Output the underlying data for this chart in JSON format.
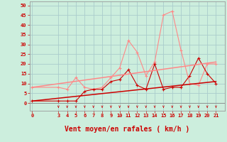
{
  "title": "",
  "xlabel": "Vent moyen/en rafales ( km/h )",
  "background_color": "#cceedd",
  "grid_color": "#aacccc",
  "x_ticks": [
    0,
    3,
    4,
    5,
    6,
    7,
    8,
    9,
    10,
    11,
    12,
    13,
    14,
    15,
    16,
    17,
    18,
    19,
    20,
    21
  ],
  "y_ticks": [
    0,
    5,
    10,
    15,
    20,
    25,
    30,
    35,
    40,
    45,
    50
  ],
  "xlim": [
    -0.3,
    22.0
  ],
  "ylim": [
    -4,
    52
  ],
  "line1_x": [
    0,
    3,
    4,
    5,
    6,
    7,
    8,
    9,
    10,
    11,
    12,
    13,
    14,
    15,
    16,
    17,
    18,
    19,
    20,
    21
  ],
  "line1_y": [
    1,
    1,
    1,
    1,
    6,
    7,
    7,
    11,
    12,
    17,
    9,
    7,
    20,
    7,
    8,
    8,
    14,
    23,
    15,
    10
  ],
  "line1_color": "#cc0000",
  "line2_x": [
    0,
    3,
    4,
    5,
    6,
    7,
    8,
    9,
    10,
    11,
    12,
    13,
    14,
    15,
    16,
    17,
    18,
    19,
    20,
    21
  ],
  "line2_y": [
    8,
    8,
    7,
    13,
    8,
    7,
    8,
    13,
    18,
    32,
    26,
    14,
    21,
    45,
    47,
    27,
    10,
    9,
    20,
    20
  ],
  "line2_color": "#ff8888",
  "trend1_x": [
    0,
    21
  ],
  "trend1_y": [
    1,
    11
  ],
  "trend1_color": "#cc0000",
  "trend2_x": [
    0,
    21
  ],
  "trend2_y": [
    8,
    21
  ],
  "trend2_color": "#ff8888",
  "wind_symbols_x": [
    3,
    4,
    5,
    6,
    7,
    8,
    9,
    10,
    11,
    12,
    13,
    14,
    15,
    16,
    17,
    18,
    19,
    20,
    21
  ],
  "xlabel_color": "#cc0000",
  "tick_color": "#cc0000",
  "axis_color": "#888888"
}
